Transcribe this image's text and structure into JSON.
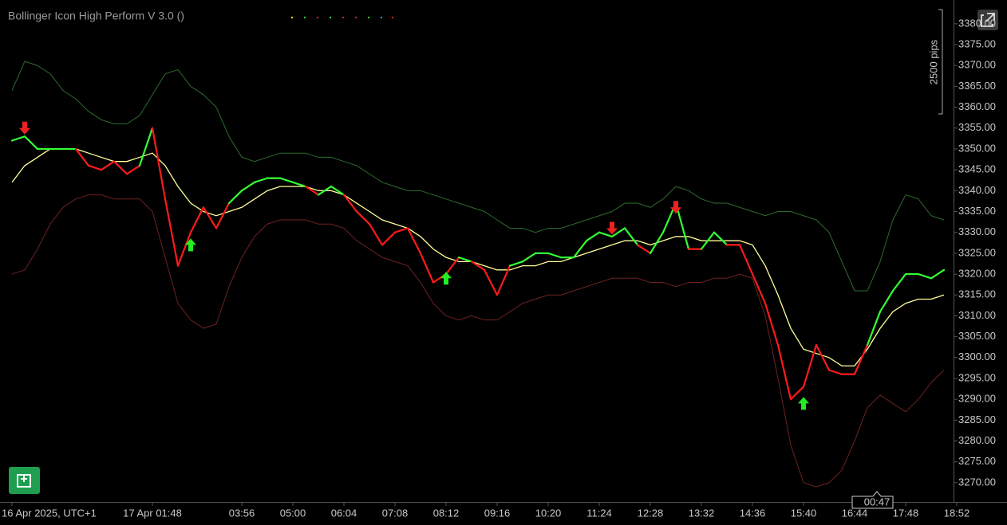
{
  "chart_data": {
    "type": "line",
    "title": "Bollinger Icon High Perform V 3.0 ()",
    "range_label": "2500 pips",
    "countdown": "00:47",
    "categories": [
      "16 Apr 2025, UTC+1",
      null,
      null,
      null,
      null,
      null,
      null,
      null,
      null,
      null,
      null,
      "17 Apr 01:48",
      null,
      null,
      null,
      null,
      null,
      null,
      "03:56",
      null,
      null,
      null,
      "05:00",
      null,
      null,
      null,
      "06:04",
      null,
      null,
      null,
      "07:08",
      null,
      null,
      null,
      "08:12",
      null,
      null,
      null,
      "09:16",
      null,
      null,
      null,
      "10:20",
      null,
      null,
      null,
      "11:24",
      null,
      null,
      null,
      "12:28",
      null,
      null,
      null,
      "13:32",
      null,
      null,
      null,
      "14:36",
      null,
      null,
      null,
      "15:40",
      null,
      null,
      null,
      "16:44",
      null,
      null,
      null,
      "17:48",
      null,
      null,
      null,
      "18:52"
    ],
    "price": {
      "up_color": "#33ff33",
      "down_color": "#ff1a1a",
      "values": [
        3352,
        3353,
        3350,
        3350,
        3350,
        3350,
        3346,
        3345,
        3347,
        3344,
        3346,
        3355,
        3338,
        3322,
        3330,
        3336,
        3331,
        3337,
        3340,
        3342,
        3343,
        3343,
        3342,
        3341,
        3339,
        3341,
        3339,
        3335,
        3332,
        3327,
        3330,
        3331,
        3325,
        3318,
        3320,
        3324,
        3323,
        3321,
        3315,
        3322,
        3323,
        3325,
        3325,
        3324,
        3324,
        3328,
        3330,
        3329,
        3331,
        3327,
        3325,
        3330,
        3337,
        3326,
        3326,
        3330,
        3327,
        3327,
        3320,
        3313,
        3303,
        3290,
        3293,
        3303,
        3297,
        3296,
        3296,
        3303,
        3311,
        3316,
        3320,
        3320,
        3319,
        3321,
        null
      ]
    },
    "bands": [
      {
        "color": "#ffff99",
        "values": [
          3342,
          3346,
          3348,
          3350,
          3350,
          3350,
          3349,
          3348,
          3347,
          3347,
          3348,
          3349,
          3346,
          3341,
          3337,
          3335,
          3334,
          3335,
          3336,
          3338,
          3340,
          3341,
          3341,
          3341,
          3340,
          3340,
          3339,
          3337,
          3335,
          3333,
          3332,
          3331,
          3329,
          3326,
          3324,
          3323,
          3323,
          3322,
          3321,
          3321,
          3322,
          3322,
          3323,
          3323,
          3324,
          3325,
          3326,
          3327,
          3328,
          3328,
          3327,
          3328,
          3329,
          3329,
          3328,
          3328,
          3328,
          3328,
          3327,
          3322,
          3315,
          3307,
          3302,
          3301,
          3300,
          3298,
          3298,
          3302,
          3307,
          3311,
          3313,
          3314,
          3314,
          3315,
          null
        ]
      },
      {
        "color": "#2e6b2e",
        "values": [
          3364,
          3371,
          3370,
          3368,
          3364,
          3362,
          3359,
          3357,
          3356,
          3356,
          3358,
          3363,
          3368,
          3369,
          3365,
          3363,
          3360,
          3353,
          3348,
          3347,
          3348,
          3349,
          3349,
          3349,
          3348,
          3348,
          3347,
          3346,
          3344,
          3342,
          3341,
          3340,
          3340,
          3339,
          3338,
          3337,
          3336,
          3335,
          3333,
          3331,
          3331,
          3330,
          3331,
          3331,
          3332,
          3333,
          3334,
          3335,
          3337,
          3337,
          3336,
          3338,
          3341,
          3340,
          3338,
          3337,
          3337,
          3336,
          3335,
          3334,
          3335,
          3335,
          3334,
          3333,
          3330,
          3323,
          3316,
          3316,
          3323,
          3333,
          3339,
          3338,
          3334,
          3333,
          null
        ]
      },
      {
        "color": "#6e2222",
        "values": [
          3320,
          3321,
          3326,
          3332,
          3336,
          3338,
          3339,
          3339,
          3338,
          3338,
          3338,
          3335,
          3324,
          3313,
          3309,
          3307,
          3308,
          3317,
          3324,
          3329,
          3332,
          3333,
          3333,
          3333,
          3332,
          3332,
          3331,
          3328,
          3326,
          3324,
          3323,
          3322,
          3318,
          3313,
          3310,
          3309,
          3310,
          3309,
          3309,
          3311,
          3313,
          3314,
          3315,
          3315,
          3316,
          3317,
          3318,
          3319,
          3319,
          3319,
          3318,
          3318,
          3317,
          3318,
          3318,
          3319,
          3319,
          3320,
          3319,
          3310,
          3295,
          3279,
          3270,
          3269,
          3270,
          3273,
          3280,
          3288,
          3291,
          3289,
          3287,
          3290,
          3294,
          3297,
          null
        ]
      }
    ],
    "buy_signals": {
      "color": "#22ee22",
      "values": [
        null,
        null,
        null,
        null,
        null,
        null,
        null,
        null,
        null,
        null,
        null,
        null,
        null,
        null,
        3327,
        null,
        null,
        null,
        null,
        null,
        null,
        null,
        null,
        null,
        null,
        null,
        null,
        null,
        null,
        null,
        null,
        null,
        null,
        null,
        3319,
        null,
        null,
        null,
        null,
        null,
        null,
        null,
        null,
        null,
        null,
        null,
        null,
        null,
        null,
        null,
        null,
        null,
        null,
        null,
        null,
        null,
        null,
        null,
        null,
        null,
        null,
        null,
        3289,
        null,
        null,
        null,
        null,
        null,
        null,
        null,
        null,
        null,
        null,
        null,
        null
      ]
    },
    "sell_signals": {
      "color": "#ee2222",
      "values": [
        null,
        3355,
        null,
        null,
        null,
        null,
        null,
        null,
        null,
        null,
        null,
        null,
        null,
        null,
        null,
        null,
        null,
        null,
        null,
        null,
        null,
        null,
        null,
        null,
        null,
        null,
        null,
        null,
        null,
        null,
        null,
        null,
        null,
        null,
        null,
        null,
        null,
        null,
        null,
        null,
        null,
        null,
        null,
        null,
        null,
        null,
        null,
        3331,
        null,
        null,
        null,
        null,
        3336,
        null,
        null,
        null,
        null,
        null,
        null,
        null,
        null,
        null,
        null,
        null,
        null,
        null,
        null,
        null,
        null,
        null,
        null,
        null,
        null,
        null,
        null
      ]
    },
    "ylim": [
      3265.4,
      3385.7
    ],
    "yticks": [
      {
        "value": 3270,
        "label": "3270.00"
      },
      {
        "value": 3275,
        "label": "3275.00"
      },
      {
        "value": 3280,
        "label": "3280.00"
      },
      {
        "value": 3285,
        "label": "3285.00"
      },
      {
        "value": 3290,
        "label": "3290.00"
      },
      {
        "value": 3295,
        "label": "3295.00"
      },
      {
        "value": 3300,
        "label": "3300.00"
      },
      {
        "value": 3305,
        "label": "3305.00"
      },
      {
        "value": 3310,
        "label": "3310.00"
      },
      {
        "value": 3315,
        "label": "3315.00"
      },
      {
        "value": 3320,
        "label": "3320.00"
      },
      {
        "value": 3325,
        "label": "3325.00"
      },
      {
        "value": 3330,
        "label": "3330.00"
      },
      {
        "value": 3335,
        "label": "3335.00"
      },
      {
        "value": 3340,
        "label": "3340.00"
      },
      {
        "value": 3345,
        "label": "3345.00"
      },
      {
        "value": 3350,
        "label": "3350.00"
      },
      {
        "value": 3355,
        "label": "3355.00"
      },
      {
        "value": 3360,
        "label": "3360.00"
      },
      {
        "value": 3365,
        "label": "3365.00"
      },
      {
        "value": 3370,
        "label": "3370.00"
      },
      {
        "value": 3375,
        "label": "3375.00"
      },
      {
        "value": 3380,
        "label": "3380.00"
      }
    ]
  }
}
